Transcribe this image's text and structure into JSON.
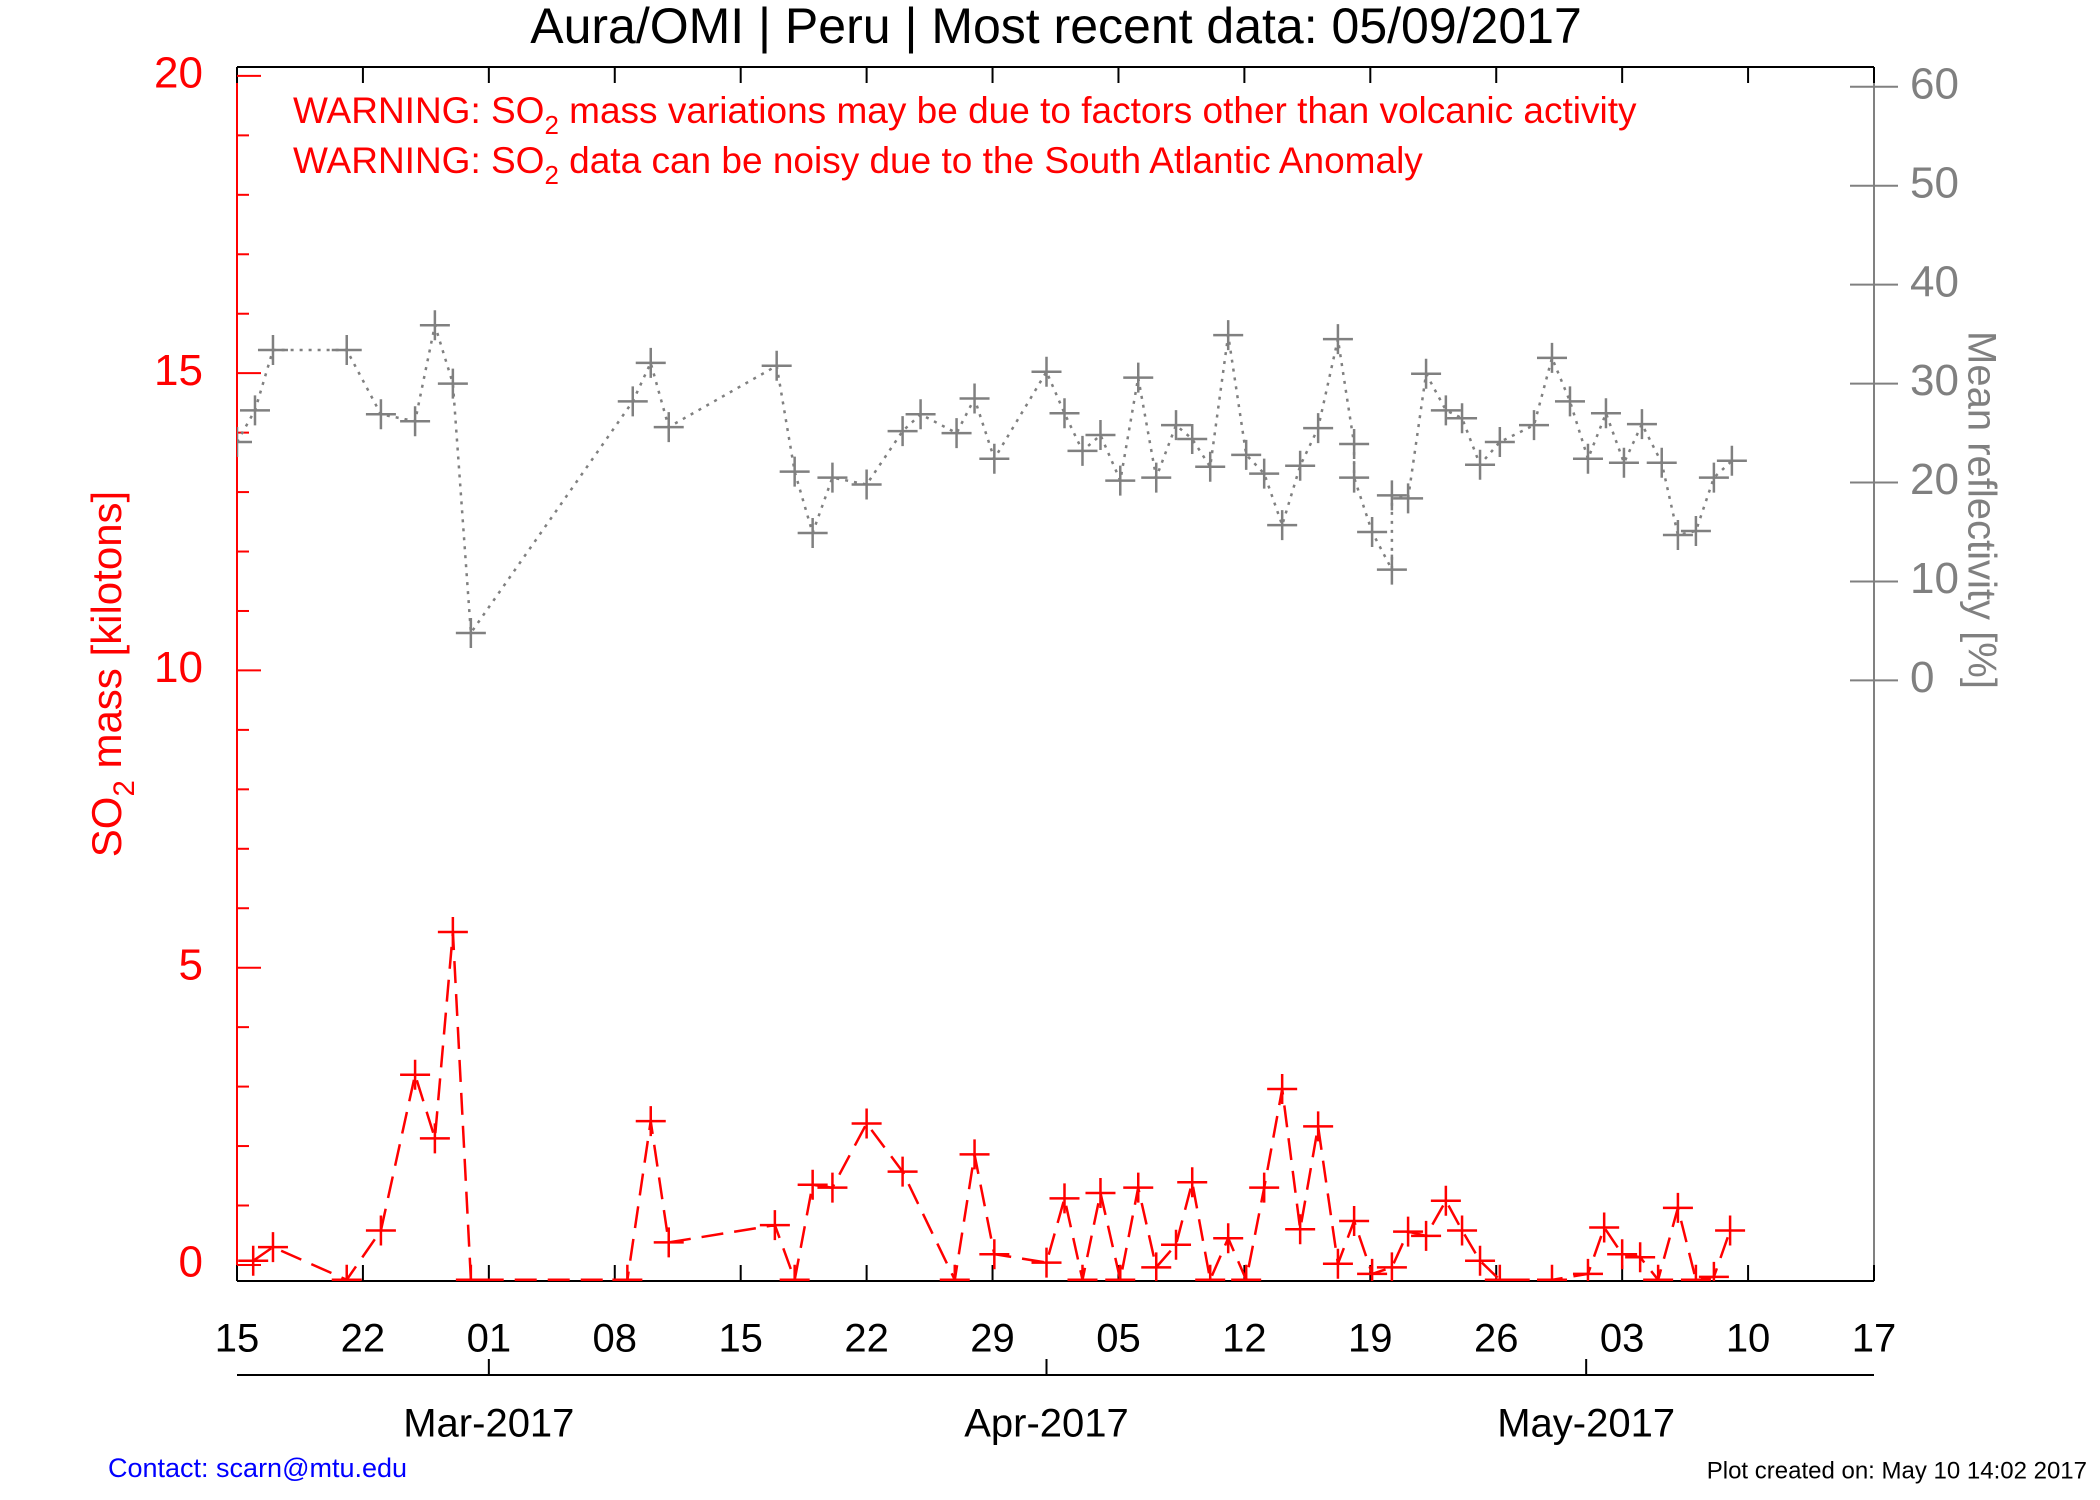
{
  "chart_data": {
    "type": "line",
    "title": "Aura/OMI | Peru | Most recent data: 05/09/2017",
    "annotations": [
      {
        "before": "WARNING: SO",
        "sub": "2",
        "after": " mass variations may be due to factors other than volcanic activity"
      },
      {
        "before": "WARNING: SO",
        "sub": "2",
        "after": " data can be noisy due to the South Atlantic Anomaly"
      }
    ],
    "ylabel": {
      "before": "SO",
      "sub": "2",
      "after": " mass [kilotons]"
    },
    "y2label": "Mean reflectivity [%]",
    "contact": "Contact: scarn@mtu.edu",
    "created": "Plot created on: May 10 14:02 2017",
    "xlim": [
      0,
      91
    ],
    "xticks": [
      {
        "value": 0,
        "label": "15"
      },
      {
        "value": 7,
        "label": "22"
      },
      {
        "value": 14,
        "label": "01"
      },
      {
        "value": 21,
        "label": "08"
      },
      {
        "value": 28,
        "label": "15"
      },
      {
        "value": 35,
        "label": "22"
      },
      {
        "value": 42,
        "label": "29"
      },
      {
        "value": 49,
        "label": "05"
      },
      {
        "value": 56,
        "label": "12"
      },
      {
        "value": 63,
        "label": "19"
      },
      {
        "value": 70,
        "label": "26"
      },
      {
        "value": 77,
        "label": "03"
      },
      {
        "value": 84,
        "label": "10"
      },
      {
        "value": 91,
        "label": "17"
      }
    ],
    "month_ticks": [
      {
        "value": 14,
        "label": "Mar-2017"
      },
      {
        "value": 45,
        "label": "Apr-2017"
      },
      {
        "value": 75,
        "label": "May-2017"
      }
    ],
    "ylim": [
      -0.27,
      20.15
    ],
    "yticks": [
      0,
      5,
      10,
      15,
      20
    ],
    "y2lim": [
      -60.7,
      62
    ],
    "y2ticks": [
      0,
      10,
      20,
      30,
      40,
      50,
      60
    ],
    "series": [
      {
        "name": "SO2 mass",
        "color": "#ff0000",
        "dash": "dashed",
        "x": [
          0.9,
          2.0,
          6.1,
          8.0,
          9.9,
          11.0,
          12.0,
          13.0,
          21.7,
          23.0,
          24.0,
          29.9,
          31.0,
          32.0,
          33.1,
          35.0,
          37.0,
          39.9,
          41.0,
          42.1,
          45.0,
          46.0,
          47.0,
          48.0,
          49.1,
          50.1,
          51.1,
          52.2,
          53.1,
          54.1,
          55.1,
          56.1,
          57.1,
          58.1,
          59.1,
          60.1,
          61.2,
          62.1,
          63.1,
          64.2,
          65.1,
          66.1,
          67.2,
          68.1,
          69.1,
          70.2,
          73.1,
          75.1,
          76.0,
          77.0,
          78.0,
          79.0,
          80.1,
          81.1,
          82.1,
          83.0
        ],
        "values": [
          0.07,
          0.3,
          -0.25,
          0.58,
          3.2,
          2.13,
          5.6,
          -0.25,
          -0.25,
          2.42,
          0.38,
          0.67,
          -0.25,
          1.35,
          1.3,
          2.38,
          1.57,
          -0.25,
          1.86,
          0.18,
          0.04,
          1.12,
          -0.25,
          1.21,
          -0.25,
          1.3,
          -0.04,
          0.34,
          1.39,
          -0.25,
          0.45,
          -0.25,
          1.3,
          2.96,
          0.6,
          2.33,
          0.02,
          0.74,
          -0.15,
          -0.04,
          0.56,
          0.49,
          1.08,
          0.58,
          0.07,
          -0.25,
          -0.25,
          -0.15,
          0.63,
          0.18,
          0.13,
          -0.25,
          0.96,
          -0.25,
          -0.2,
          0.58
        ]
      },
      {
        "name": "Mean reflectivity",
        "color": "#808080",
        "dash": "dotted",
        "axis": "y2",
        "x": [
          0,
          1,
          2,
          6.1,
          8,
          9.9,
          11,
          12,
          13,
          22,
          23,
          24,
          30,
          31,
          32,
          33.1,
          35,
          37,
          38,
          40,
          41,
          42.1,
          45,
          46,
          47,
          48,
          49.1,
          50.1,
          51.1,
          52.2,
          53.1,
          54.1,
          55.1,
          56.1,
          57.1,
          58.1,
          59.1,
          60.1,
          61.2,
          62.1,
          62.1,
          63.1,
          64.2,
          64.2,
          65.1,
          66.1,
          67.2,
          68.1,
          69.1,
          70.2,
          72.1,
          73.1,
          74.1,
          75.1,
          76.1,
          77.1,
          78.1,
          79.2,
          80.1,
          81.1,
          82.1,
          83.1
        ],
        "values": [
          24.1,
          27.3,
          33.4,
          33.4,
          26.9,
          26.2,
          35.9,
          30.0,
          4.8,
          28.2,
          32.1,
          25.6,
          31.8,
          21.1,
          14.9,
          20.5,
          19.8,
          25.2,
          26.9,
          25.0,
          28.5,
          22.4,
          31.2,
          27.0,
          23.2,
          24.8,
          20.2,
          30.6,
          20.5,
          25.8,
          24.4,
          21.6,
          34.9,
          22.8,
          20.9,
          15.7,
          21.7,
          25.5,
          34.5,
          23.9,
          20.5,
          15.0,
          11.2,
          18.7,
          18.4,
          31.0,
          27.3,
          26.5,
          21.8,
          24.1,
          25.8,
          32.6,
          28.2,
          22.4,
          27.0,
          22.0,
          25.9,
          22.0,
          14.7,
          15.1,
          20.5,
          22.2
        ]
      }
    ]
  }
}
